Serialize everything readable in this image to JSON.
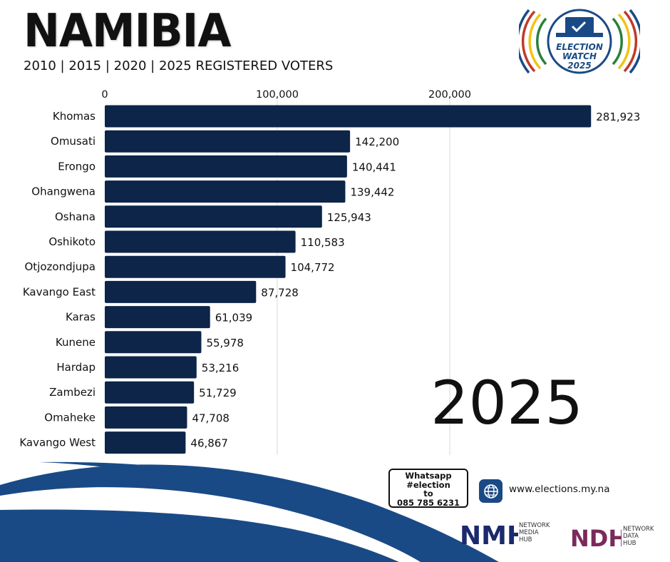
{
  "header": {
    "title": "NAMIBIA",
    "subtitle": "2010 | 2015 | 2020 | 2025 REGISTERED VOTERS"
  },
  "badge": {
    "line1": "ELECTION",
    "line2": "WATCH",
    "line3": "2025"
  },
  "year_label": "2025",
  "chart_data": {
    "type": "bar",
    "orientation": "horizontal",
    "categories": [
      "Khomas",
      "Omusati",
      "Erongo",
      "Ohangwena",
      "Oshana",
      "Oshikoto",
      "Otjozondjupa",
      "Kavango East",
      "Karas",
      "Kunene",
      "Hardap",
      "Zambezi",
      "Omaheke",
      "Kavango West"
    ],
    "values": [
      281923,
      142200,
      140441,
      139442,
      125943,
      110583,
      104772,
      87728,
      61039,
      55978,
      53216,
      51729,
      47708,
      46867
    ],
    "value_labels": [
      "281,923",
      "142,200",
      "140,441",
      "139,442",
      "125,943",
      "110,583",
      "104,772",
      "87,728",
      "61,039",
      "55,978",
      "53,216",
      "51,729",
      "47,708",
      "46,867"
    ],
    "ticks": [
      0,
      100000,
      200000
    ],
    "tick_labels": [
      "0",
      "100,000",
      "200,000"
    ],
    "axis_position": "top",
    "grid": true,
    "bar_color": "#0c2548"
  },
  "contact": {
    "whatsapp_lines": [
      "Whatsapp",
      "#election",
      "to",
      "085 785 6231"
    ],
    "website": "www.elections.my.na"
  },
  "footer": {
    "nmh_mark": "NMH",
    "nmh_words": [
      "NETWORK",
      "MEDIA",
      "HUB"
    ],
    "ndh_mark": "NDH",
    "ndh_words": [
      "NETWORK",
      "DATA",
      "HUB"
    ]
  },
  "colors": {
    "navy": "#0c2548",
    "wave_blue": "#1a4a86",
    "ndh_purple": "#7b2a5c"
  }
}
